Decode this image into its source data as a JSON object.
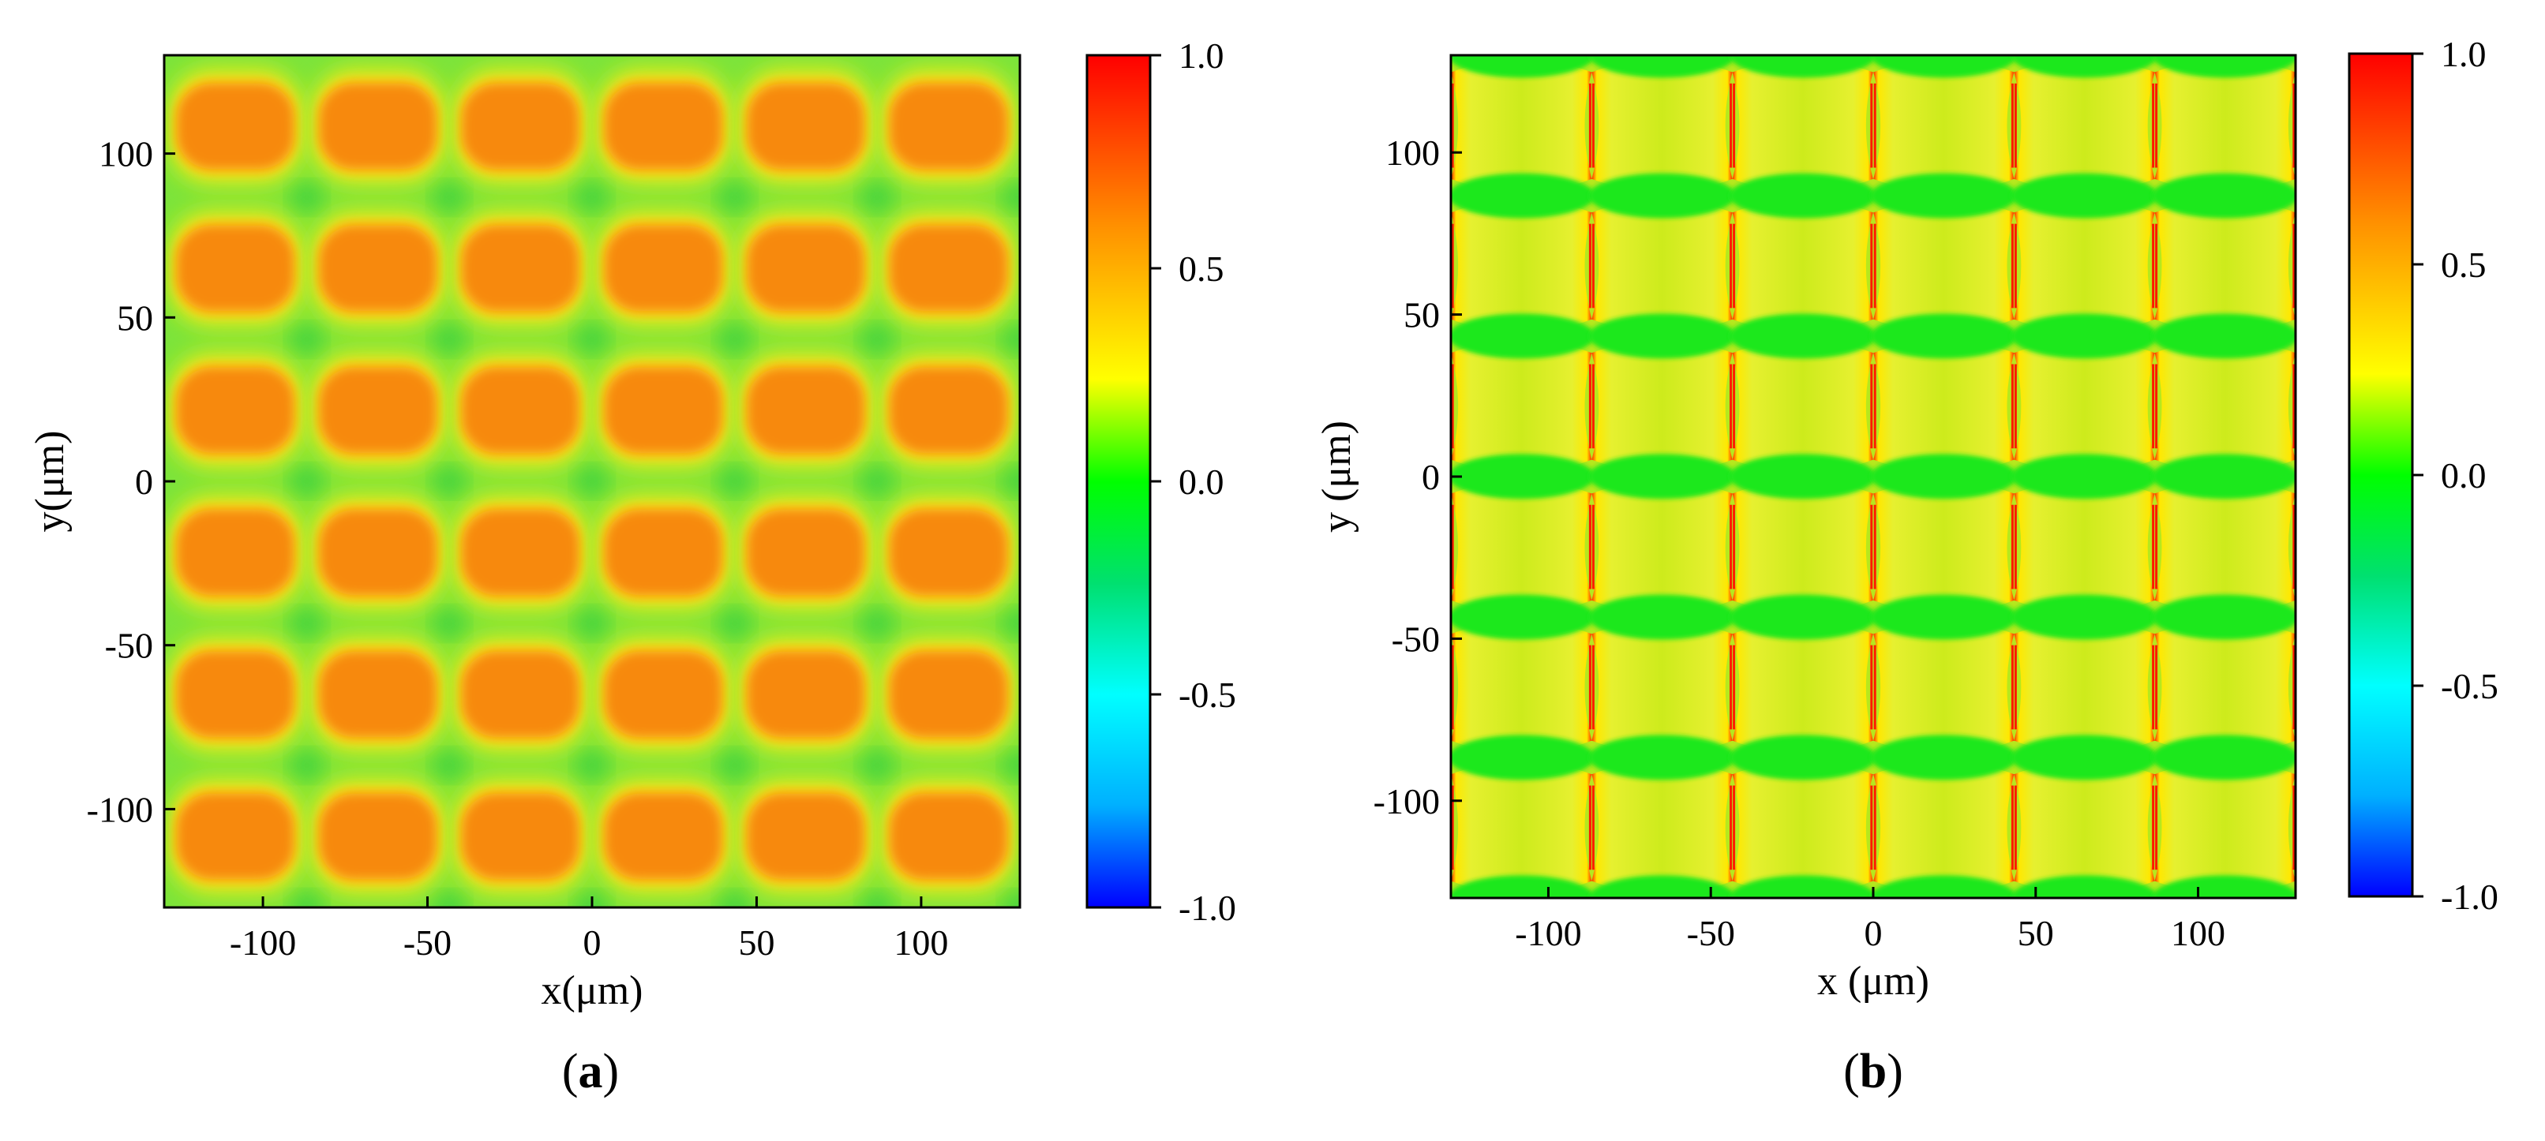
{
  "figure": {
    "colors": {
      "colormap": [
        "#0000ff",
        "#00b0ff",
        "#00ffff",
        "#00e070",
        "#00ff00",
        "#ffff00",
        "#ff9000",
        "#ff0000"
      ],
      "frame": "#000000",
      "background": "#ffffff"
    }
  },
  "chart_data": [
    {
      "type": "heatmap",
      "panel_label": "(a)",
      "panel_letter": "a",
      "xlabel": "x(μm)",
      "ylabel": "y(μm)",
      "xlim": [
        -130,
        130
      ],
      "ylim": [
        -130,
        130
      ],
      "x_ticks": [
        -100,
        -50,
        0,
        50,
        100
      ],
      "y_ticks": [
        -100,
        -50,
        0,
        50,
        100
      ],
      "x_tick_labels": [
        "-100",
        "-50",
        "0",
        "50",
        "100"
      ],
      "y_tick_labels": [
        "-100",
        "-50",
        "0",
        "50",
        "100"
      ],
      "pattern": "rounded-blocks",
      "cell_columns": 6,
      "cell_rows": 6,
      "period_x_um": 43.3,
      "period_y_um": 43.3,
      "cell_centers_x_um": [
        -108.3,
        -65,
        -21.7,
        21.7,
        65,
        108.3
      ],
      "cell_centers_y_um": [
        108.3,
        65,
        21.7,
        -21.7,
        -65,
        -108.3
      ],
      "values": {
        "peak": 0.72,
        "ring": 0.55,
        "gap": 0.3,
        "cross": 0.22
      },
      "colorbar": {
        "range": [
          -1.0,
          1.0
        ],
        "ticks": [
          1.0,
          0.5,
          0.0,
          -0.5,
          -1.0
        ],
        "tick_labels": [
          "1.0",
          "0.5",
          "0.0",
          "-0.5",
          "-1.0"
        ]
      }
    },
    {
      "type": "heatmap",
      "panel_label": "(b)",
      "panel_letter": "b",
      "xlabel": "x (μm)",
      "ylabel": "y (μm)",
      "xlim": [
        -130,
        130
      ],
      "ylim": [
        -130,
        130
      ],
      "x_ticks": [
        -100,
        -50,
        0,
        50,
        100
      ],
      "y_ticks": [
        -100,
        -50,
        0,
        50,
        100
      ],
      "x_tick_labels": [
        "-100",
        "-50",
        "0",
        "50",
        "100"
      ],
      "y_tick_labels": [
        "-100",
        "-50",
        "0",
        "50",
        "100"
      ],
      "pattern": "pillow-cells",
      "cell_columns": 6,
      "cell_rows": 6,
      "period_x_um": 43.3,
      "period_y_um": 43.3,
      "cell_centers_x_um": [
        -108.3,
        -65,
        -21.7,
        21.7,
        65,
        108.3
      ],
      "cell_centers_y_um": [
        108.3,
        65,
        21.7,
        -21.7,
        -65,
        -108.3
      ],
      "values": {
        "body": 0.45,
        "band": 0.18,
        "edge_spike": 0.95
      },
      "colorbar": {
        "range": [
          -1.0,
          1.0
        ],
        "ticks": [
          1.0,
          0.5,
          0.0,
          -0.5,
          -1.0
        ],
        "tick_labels": [
          "1.0",
          "0.5",
          "0.0",
          "-0.5",
          "-1.0"
        ]
      }
    }
  ]
}
